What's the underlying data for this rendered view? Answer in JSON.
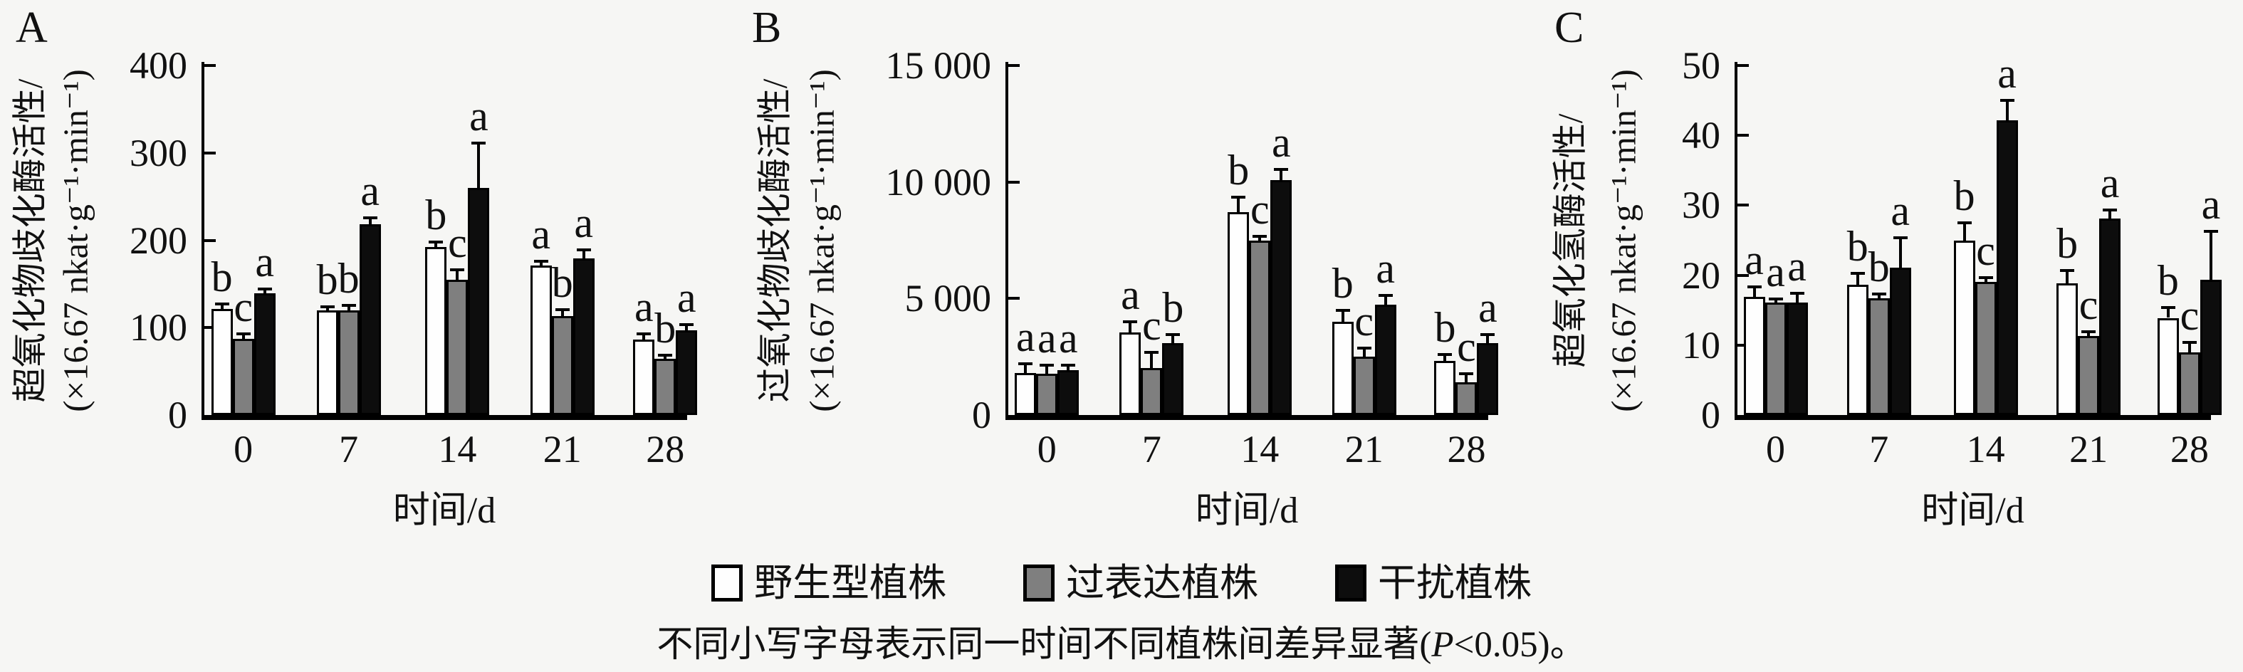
{
  "figure": {
    "background": "#f6f6f4",
    "bar_border_color": "#000000",
    "legend": [
      {
        "label": "野生型植株",
        "color": "#fefefe"
      },
      {
        "label": "过表达植株",
        "color": "#7f7f7f"
      },
      {
        "label": "干扰植株",
        "color": "#0d0d0d"
      }
    ],
    "caption": {
      "prefix": "不同小写字母表示同一时间不同植株间差异显著(",
      "italic_p": "P",
      "suffix": "<0.05)。"
    }
  },
  "chart_data": [
    {
      "type": "bar",
      "panel_letter": "A",
      "ylabel": "超氧化物歧化酶活性/",
      "ylabel_unit": "(×16.67 nkat·g⁻¹·min⁻¹)",
      "xlabel": "时间/d",
      "categories": [
        "0",
        "7",
        "14",
        "21",
        "28"
      ],
      "ylim": [
        0,
        400
      ],
      "ytick_values": [
        0,
        100,
        200,
        300,
        400
      ],
      "ytick_labels": [
        "0",
        "100",
        "200",
        "300",
        "400"
      ],
      "grid": false,
      "series": [
        {
          "name": "野生型植株",
          "color": "#fefefe",
          "values": [
            121,
            120,
            192,
            171,
            86
          ],
          "errors": [
            5,
            3,
            5,
            4,
            6
          ],
          "letters": [
            "b",
            "b",
            "b",
            "a",
            "a"
          ]
        },
        {
          "name": "过表达植株",
          "color": "#7f7f7f",
          "values": [
            87,
            120,
            155,
            113,
            64
          ],
          "errors": [
            5,
            5,
            10,
            7,
            4
          ],
          "letters": [
            "c",
            "b",
            "c",
            "b",
            "b"
          ]
        },
        {
          "name": "干扰植株",
          "color": "#0d0d0d",
          "values": [
            139,
            218,
            260,
            179,
            97
          ],
          "errors": [
            4,
            7,
            50,
            9,
            6
          ],
          "letters": [
            "a",
            "a",
            "a",
            "a",
            "a"
          ]
        }
      ]
    },
    {
      "type": "bar",
      "panel_letter": "B",
      "ylabel": "过氧化物歧化酶活性/",
      "ylabel_unit": "(×16.67 nkat·g⁻¹·min⁻¹)",
      "xlabel": "时间/d",
      "categories": [
        "0",
        "7",
        "14",
        "21",
        "28"
      ],
      "ylim": [
        0,
        15000
      ],
      "ytick_values": [
        0,
        5000,
        10000,
        15000
      ],
      "ytick_labels": [
        "0",
        "5 000",
        "10 000",
        "15 000"
      ],
      "grid": false,
      "series": [
        {
          "name": "野生型植株",
          "color": "#fefefe",
          "values": [
            1790,
            3550,
            8700,
            4010,
            2320
          ],
          "errors": [
            370,
            430,
            620,
            440,
            250
          ],
          "letters": [
            "a",
            "a",
            "b",
            "b",
            "b"
          ]
        },
        {
          "name": "过表达植株",
          "color": "#7f7f7f",
          "values": [
            1770,
            2010,
            7470,
            2500,
            1420
          ],
          "errors": [
            330,
            640,
            160,
            330,
            310
          ],
          "letters": [
            "a",
            "c",
            "c",
            "c",
            "c"
          ]
        },
        {
          "name": "干扰植株",
          "color": "#0d0d0d",
          "values": [
            1910,
            3080,
            10090,
            4750,
            3080
          ],
          "errors": [
            200,
            350,
            420,
            340,
            340
          ],
          "letters": [
            "a",
            "b",
            "a",
            "a",
            "a"
          ]
        }
      ]
    },
    {
      "type": "bar",
      "panel_letter": "C",
      "ylabel": "超氧化氢酶活性/",
      "ylabel_unit": "(×16.67 nkat·g⁻¹·min⁻¹)",
      "xlabel": "时间/d",
      "categories": [
        "0",
        "7",
        "14",
        "21",
        "28"
      ],
      "ylim": [
        0,
        50
      ],
      "ytick_values": [
        0,
        10,
        20,
        30,
        40,
        50
      ],
      "ytick_labels": [
        "0",
        "10",
        "20",
        "30",
        "40",
        "50"
      ],
      "grid": false,
      "series": [
        {
          "name": "野生型植株",
          "color": "#fefefe",
          "values": [
            16.9,
            18.6,
            24.9,
            18.8,
            13.9
          ],
          "errors": [
            1.3,
            1.6,
            2.5,
            1.8,
            1.4
          ],
          "letters": [
            "a",
            "b",
            "b",
            "b",
            "b"
          ]
        },
        {
          "name": "过表达植株",
          "color": "#7f7f7f",
          "values": [
            16.1,
            16.7,
            19.0,
            11.3,
            9.0
          ],
          "errors": [
            0.4,
            0.5,
            0.6,
            0.5,
            1.3
          ],
          "letters": [
            "a",
            "b",
            "c",
            "c",
            "c"
          ]
        },
        {
          "name": "干扰植株",
          "color": "#0d0d0d",
          "values": [
            16.1,
            21.1,
            42.2,
            28.1,
            19.3
          ],
          "errors": [
            1.2,
            4.2,
            2.7,
            1.1,
            6.9
          ],
          "letters": [
            "a",
            "a",
            "a",
            "a",
            "a"
          ]
        }
      ]
    }
  ]
}
